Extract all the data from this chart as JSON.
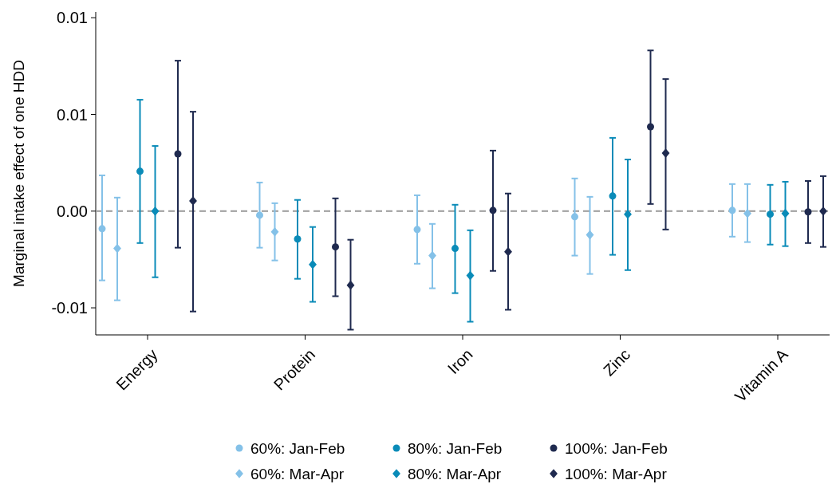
{
  "chart_data": {
    "type": "scatter",
    "ylabel": "Marginal intake effect of one HDD",
    "categories": [
      "Energy",
      "Protein",
      "Iron",
      "Zinc",
      "Vitamin A"
    ],
    "ylim": [
      -0.0064,
      0.0103
    ],
    "yticks": [
      {
        "value": 0.01,
        "label": "0.01"
      },
      {
        "value": 0.005,
        "label": "0.01"
      },
      {
        "value": 0,
        "label": "0.00"
      },
      {
        "value": -0.005,
        "label": "-0.01"
      }
    ],
    "grid": false,
    "legend": "bottom",
    "ref_lines": [
      {
        "axis": "y",
        "value": 0,
        "color": "#999999",
        "line_style": "dashed"
      }
    ],
    "series": [
      {
        "name": "60%: Jan-Feb",
        "color": "#84c1e8",
        "marker": "circle",
        "values": [
          -0.00091,
          -0.00021,
          -0.00095,
          -0.00029,
          4e-05
        ],
        "errors": [
          [
            -0.00358,
            0.00185
          ],
          [
            -0.00189,
            0.00148
          ],
          [
            -0.00272,
            0.00082
          ],
          [
            -0.0023,
            0.00169
          ],
          [
            -0.00132,
            0.0014
          ]
        ]
      },
      {
        "name": "60%: Mar-Apr",
        "color": "#84c1e8",
        "marker": "diamond",
        "values": [
          -0.00193,
          -0.00107,
          -0.0023,
          -0.00123,
          -0.00012
        ],
        "errors": [
          [
            -0.00461,
            0.0007
          ],
          [
            -0.00255,
            0.00041
          ],
          [
            -0.00399,
            -0.00066
          ],
          [
            -0.00325,
            0.00074
          ],
          [
            -0.0016,
            0.0014
          ]
        ]
      },
      {
        "name": "80%: Jan-Feb",
        "color": "#0a8bb8",
        "marker": "circle",
        "values": [
          0.00206,
          -0.00144,
          -0.00193,
          0.00078,
          -0.00016
        ],
        "errors": [
          [
            -0.00165,
            0.00576
          ],
          [
            -0.0035,
            0.00058
          ],
          [
            -0.00424,
            0.00033
          ],
          [
            -0.00226,
            0.00379
          ],
          [
            -0.00173,
            0.00136
          ]
        ]
      },
      {
        "name": "80%: Mar-Apr",
        "color": "#0a8bb8",
        "marker": "diamond",
        "values": [
          0,
          -0.00276,
          -0.00333,
          -0.00016,
          -0.00012
        ],
        "errors": [
          [
            -0.00342,
            0.00337
          ],
          [
            -0.00469,
            -0.00082
          ],
          [
            -0.00572,
            -0.00099
          ],
          [
            -0.00305,
            0.00267
          ],
          [
            -0.00181,
            0.00152
          ]
        ]
      },
      {
        "name": "100%: Jan-Feb",
        "color": "#1f2a4f",
        "marker": "circle",
        "values": [
          0.00296,
          -0.00185,
          4e-05,
          0.00436,
          -4e-05
        ],
        "errors": [
          [
            -0.00189,
            0.00778
          ],
          [
            -0.0044,
            0.00066
          ],
          [
            -0.00309,
            0.00313
          ],
          [
            0.00037,
            0.00831
          ],
          [
            -0.00165,
            0.00156
          ]
        ]
      },
      {
        "name": "100%: Mar-Apr",
        "color": "#1f2a4f",
        "marker": "diamond",
        "values": [
          0.00053,
          -0.00383,
          -0.0021,
          0.003,
          0
        ],
        "errors": [
          [
            -0.00519,
            0.00514
          ],
          [
            -0.00613,
            -0.00148
          ],
          [
            -0.0051,
            0.00091
          ],
          [
            -0.00095,
            0.00683
          ],
          [
            -0.00185,
            0.00181
          ]
        ]
      }
    ]
  }
}
